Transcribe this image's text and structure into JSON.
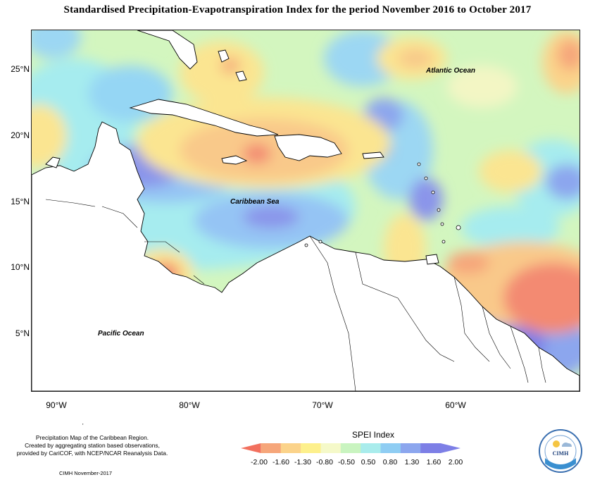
{
  "title": "Standardised Precipitation-Evapotranspiration Index for the period November 2016 to October 2017",
  "latitude_labels": [
    "25°N",
    "20°N",
    "15°N",
    "10°N",
    "5°N"
  ],
  "longitude_labels": [
    "90°W",
    "80°W",
    "70°W",
    "60°W"
  ],
  "map_labels": {
    "atlantic": "Atlantic Ocean",
    "caribbean": "Caribbean Sea",
    "pacific": "Pacific Ocean"
  },
  "legend": {
    "title": "SPEI Index",
    "values": [
      "-2.00",
      "-1.60",
      "-1.30",
      "-0.80",
      "-0.50",
      "0.50",
      "0.80",
      "1.30",
      "1.60",
      "2.00"
    ],
    "colors": [
      "#f2705e",
      "#f6a67a",
      "#fbd38a",
      "#fdf08c",
      "#f5f9c9",
      "#c9f4c0",
      "#a9ecec",
      "#8fcdf3",
      "#8ca6ee",
      "#7d7fe6"
    ]
  },
  "credit": {
    "lines": [
      "Precipitation Map of the Caribbean Region.",
      "Created by aggregating station based observations,",
      "provided by CariCOF, with NCEP/NCAR Reanalysis Data."
    ],
    "date": "CIMH November-2017",
    "tick_mark": "'"
  },
  "logo": {
    "text": "CIMH"
  }
}
